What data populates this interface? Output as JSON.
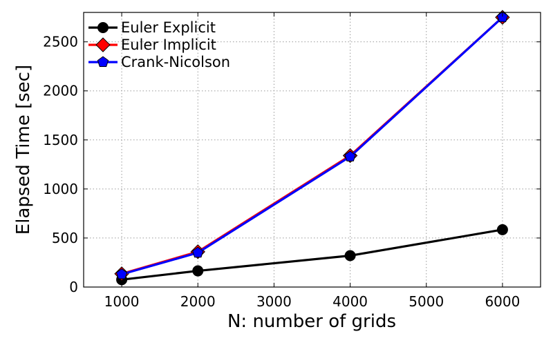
{
  "chart_data": {
    "type": "line",
    "title": "",
    "xlabel": "N: number of grids",
    "ylabel": "Elapsed Time [sec]",
    "xlim": [
      500,
      6500
    ],
    "ylim": [
      0,
      2800
    ],
    "xticks": [
      1000,
      2000,
      3000,
      4000,
      5000,
      6000
    ],
    "yticks": [
      0,
      500,
      1000,
      1500,
      2000,
      2500
    ],
    "grid": true,
    "legend_position": "top-left",
    "x": [
      1000,
      2000,
      4000,
      6000
    ],
    "series": [
      {
        "name": "Euler Explicit",
        "values": [
          75,
          165,
          320,
          585
        ],
        "color": "#000000",
        "marker": "circle"
      },
      {
        "name": "Euler Implicit",
        "values": [
          135,
          360,
          1340,
          2750
        ],
        "color": "#ff0000",
        "marker": "diamond"
      },
      {
        "name": "Crank-Nicolson",
        "values": [
          130,
          350,
          1330,
          2750
        ],
        "color": "#0000ff",
        "marker": "pentagon"
      }
    ]
  }
}
